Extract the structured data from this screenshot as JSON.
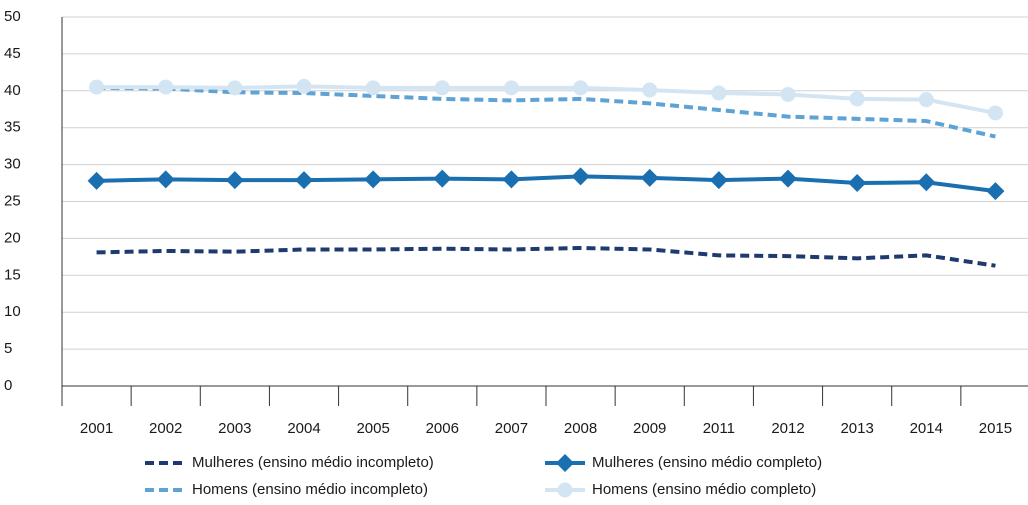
{
  "chart_data": {
    "type": "line",
    "categories": [
      "2001",
      "2002",
      "2003",
      "2004",
      "2005",
      "2006",
      "2007",
      "2008",
      "2009",
      "2011",
      "2012",
      "2013",
      "2014",
      "2015"
    ],
    "series": [
      {
        "name": "Mulheres (ensino médio incompleto)",
        "color": "#1f3a6e",
        "style": "dashed",
        "marker": "none",
        "values": [
          18.1,
          18.3,
          18.2,
          18.5,
          18.5,
          18.6,
          18.5,
          18.7,
          18.5,
          17.7,
          17.6,
          17.3,
          17.7,
          16.3
        ]
      },
      {
        "name": "Mulheres (ensino médio completo)",
        "color": "#1a6fb0",
        "style": "solid",
        "marker": "diamond",
        "values": [
          27.8,
          28.0,
          27.9,
          27.9,
          28.0,
          28.1,
          28.0,
          28.4,
          28.2,
          27.9,
          28.1,
          27.5,
          27.6,
          26.4
        ]
      },
      {
        "name": "Homens (ensino médio incompleto)",
        "color": "#5ea3d4",
        "style": "dashed",
        "marker": "none",
        "values": [
          40.4,
          40.3,
          39.8,
          39.7,
          39.3,
          38.9,
          38.7,
          38.9,
          38.3,
          37.4,
          36.5,
          36.2,
          35.9,
          33.8
        ]
      },
      {
        "name": "Homens (ensino médio completo)",
        "color": "#d3e5f3",
        "style": "solid",
        "marker": "circle",
        "values": [
          40.5,
          40.5,
          40.4,
          40.6,
          40.4,
          40.4,
          40.4,
          40.4,
          40.1,
          39.7,
          39.5,
          38.9,
          38.8,
          37.0
        ]
      }
    ],
    "ylim": [
      0,
      50
    ],
    "yticks": [
      0,
      5,
      10,
      15,
      20,
      25,
      30,
      35,
      40,
      45,
      50
    ],
    "grid": true
  }
}
